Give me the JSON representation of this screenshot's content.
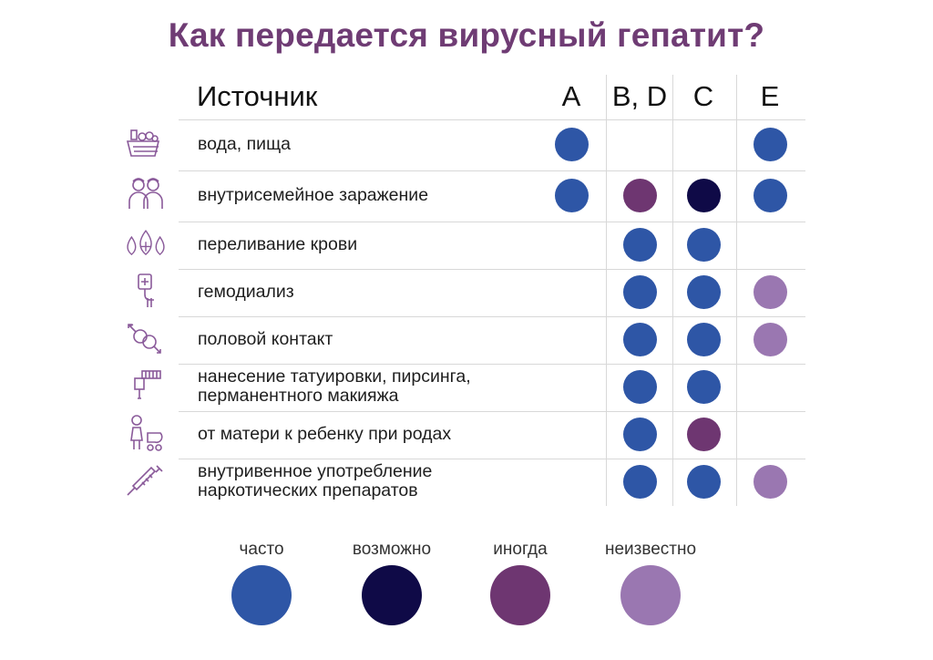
{
  "title": "Как передается вирусный гепатит?",
  "table": {
    "source_header": "Источник",
    "columns": [
      "A",
      "B, D",
      "C",
      "E"
    ],
    "rows": [
      {
        "label_lines": [
          "вода, пища"
        ],
        "icon": "food-basket-icon",
        "cells": [
          "часто",
          null,
          null,
          "часто"
        ]
      },
      {
        "label_lines": [
          "внутрисемейное заражение"
        ],
        "icon": "family-icon",
        "cells": [
          "часто",
          "иногда",
          "возможно",
          "часто"
        ]
      },
      {
        "label_lines": [
          "переливание крови"
        ],
        "icon": "blood-drops-icon",
        "cells": [
          null,
          "часто",
          "часто",
          null
        ]
      },
      {
        "label_lines": [
          "гемодиализ"
        ],
        "icon": "dialysis-bag-icon",
        "cells": [
          null,
          "часто",
          "часто",
          "неизвестно"
        ]
      },
      {
        "label_lines": [
          "половой контакт"
        ],
        "icon": "gender-symbols-icon",
        "cells": [
          null,
          "часто",
          "часто",
          "неизвестно"
        ]
      },
      {
        "label_lines": [
          "нанесение татуировки, пирсинга,",
          "перманентного макияжа"
        ],
        "icon": "tattoo-machine-icon",
        "cells": [
          null,
          "часто",
          "часто",
          null
        ]
      },
      {
        "label_lines": [
          "от матери к ребенку при родах"
        ],
        "icon": "mother-stroller-icon",
        "cells": [
          null,
          "часто",
          "иногда",
          null
        ]
      },
      {
        "label_lines": [
          "внутривенное употребление",
          "наркотических препаратов"
        ],
        "icon": "syringe-icon",
        "cells": [
          null,
          "часто",
          "часто",
          "неизвестно"
        ]
      }
    ]
  },
  "legend": [
    {
      "label": "часто",
      "color": "#2e56a6"
    },
    {
      "label": "возможно",
      "color": "#0f0a47"
    },
    {
      "label": "иногда",
      "color": "#6e3671"
    },
    {
      "label": "неизвестно",
      "color": "#9a77b1"
    }
  ],
  "colors": {
    "title": "#6f3c74",
    "icon": "#8a5a9a"
  }
}
